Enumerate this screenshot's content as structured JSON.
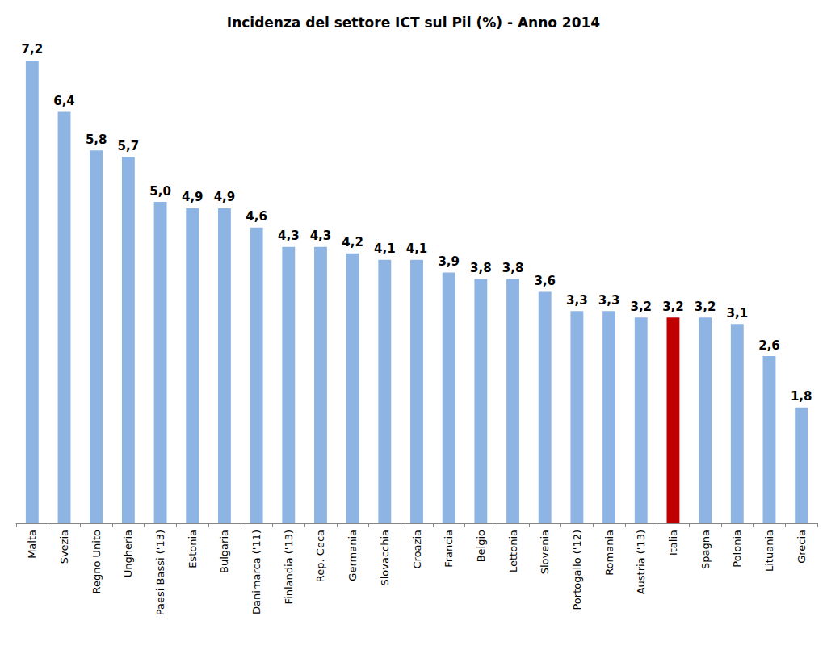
{
  "chart_data": {
    "type": "bar",
    "title": "Incidenza del settore ICT sul Pil (%) - Anno 2014",
    "categories": [
      "Malta",
      "Svezia",
      "Regno Unito",
      "Ungheria",
      "Paesi Bassi ('13)",
      "Estonia",
      "Bulgaria",
      "Danimarca ('11)",
      "Finlandia ('13)",
      "Rep. Ceca",
      "Germania",
      "Slovacchia",
      "Croazia",
      "Francia",
      "Belgio",
      "Lettonia",
      "Slovenia",
      "Portogallo ('12)",
      "Romania",
      "Austria ('13)",
      "Italia",
      "Spagna",
      "Polonia",
      "Lituania",
      "Grecia"
    ],
    "values": [
      7.2,
      6.4,
      5.8,
      5.7,
      5.0,
      4.9,
      4.9,
      4.6,
      4.3,
      4.3,
      4.2,
      4.1,
      4.1,
      3.9,
      3.8,
      3.8,
      3.6,
      3.3,
      3.3,
      3.2,
      3.2,
      3.2,
      3.1,
      2.6,
      1.8
    ],
    "value_labels": [
      "7,2",
      "6,4",
      "5,8",
      "5,7",
      "5,0",
      "4,9",
      "4,9",
      "4,6",
      "4,3",
      "4,3",
      "4,2",
      "4,1",
      "4,1",
      "3,9",
      "3,8",
      "3,8",
      "3,6",
      "3,3",
      "3,3",
      "3,2",
      "3,2",
      "3,2",
      "3,1",
      "2,6",
      "1,8"
    ],
    "colors": [
      "#8db4e2",
      "#8db4e2",
      "#8db4e2",
      "#8db4e2",
      "#8db4e2",
      "#8db4e2",
      "#8db4e2",
      "#8db4e2",
      "#8db4e2",
      "#8db4e2",
      "#8db4e2",
      "#8db4e2",
      "#8db4e2",
      "#8db4e2",
      "#8db4e2",
      "#8db4e2",
      "#8db4e2",
      "#8db4e2",
      "#8db4e2",
      "#8db4e2",
      "#c00000",
      "#8db4e2",
      "#8db4e2",
      "#8db4e2",
      "#8db4e2"
    ],
    "ylim": [
      0,
      7.5
    ],
    "data_labels": true,
    "tick_labels": "x",
    "grid": false
  }
}
